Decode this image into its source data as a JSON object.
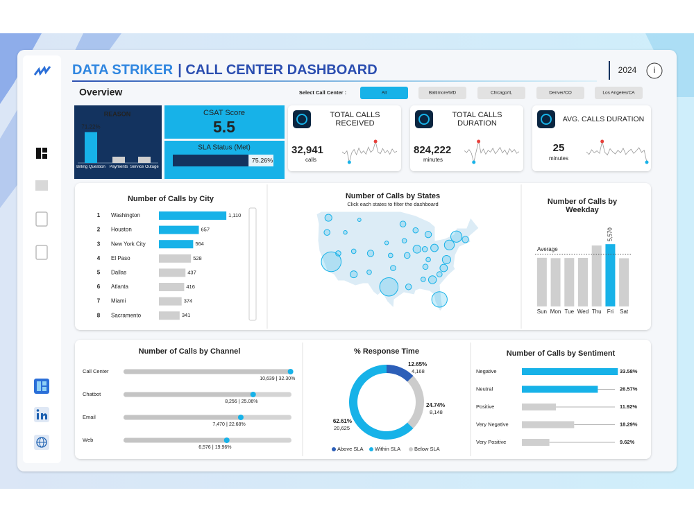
{
  "header": {
    "brand": "DATA STRIKER",
    "title": "| CALL CENTER DASHBOARD",
    "year": "2024",
    "info": "i"
  },
  "overview": "Overview",
  "filter": {
    "label": "Select Call Center :",
    "options": [
      "All",
      "Baltimore/MD",
      "Chicago/IL",
      "Denver/CO",
      "Los Angeles/CA"
    ],
    "selected": 0
  },
  "kpis": [
    {
      "title": "CSAT Score",
      "value": 5.5
    },
    {
      "title": "SLA Status (Met)",
      "value": 75.26,
      "value_label": "75.26%",
      "xlim": [
        0,
        100
      ],
      "color": "#13335f"
    },
    {
      "title": "TOTAL CALLS RECEIVED",
      "value": 32941,
      "value_label": "32,941",
      "unit": "calls",
      "trend": [
        50,
        46,
        52,
        28,
        48,
        55,
        44,
        58,
        47,
        52,
        45,
        60,
        49,
        54,
        72,
        50,
        46,
        57,
        48,
        53,
        45,
        56,
        49,
        51
      ]
    },
    {
      "title": "TOTAL CALLS DURATION",
      "value": 824222,
      "value_label": "824,222",
      "unit": "minutes",
      "trend": [
        52,
        48,
        55,
        46,
        25,
        50,
        74,
        47,
        56,
        44,
        53,
        49,
        58,
        45,
        52,
        60,
        47,
        54,
        43,
        57,
        49,
        55,
        46,
        50
      ]
    },
    {
      "title": "AVG. CALLS DURATION",
      "value": 25,
      "unit": "minutes",
      "trend": [
        50,
        45,
        54,
        48,
        52,
        47,
        70,
        49,
        44,
        56,
        50,
        46,
        53,
        48,
        57,
        45,
        51,
        55,
        47,
        52,
        58,
        49,
        53,
        30
      ]
    }
  ],
  "chart_data": [
    {
      "type": "bar",
      "title": "REASON",
      "categories": [
        "Billing Question",
        "Payments",
        "Service Outage"
      ],
      "values": [
        71.22,
        14.4,
        14.38
      ],
      "value_labels": [
        "71.22%",
        null,
        null
      ],
      "ylim": [
        0,
        80
      ],
      "colors": [
        "#17b2e8",
        "#cfcfcf",
        "#cfcfcf"
      ]
    },
    {
      "type": "barh",
      "title": "Number of Calls by City",
      "ranks": [
        1,
        2,
        3,
        4,
        5,
        6,
        7,
        8
      ],
      "categories": [
        "Washington",
        "Houston",
        "New York City",
        "El Paso",
        "Dallas",
        "Atlanta",
        "Miami",
        "Sacramento"
      ],
      "values": [
        1110,
        657,
        564,
        528,
        437,
        416,
        374,
        341
      ],
      "value_labels": [
        "1,110",
        "657",
        "564",
        "528",
        "437",
        "416",
        "374",
        "341"
      ],
      "xlim": [
        0,
        1200
      ],
      "colors": [
        "#17b2e8",
        "#17b2e8",
        "#17b2e8",
        "#cfcfcf",
        "#cfcfcf",
        "#cfcfcf",
        "#cfcfcf",
        "#cfcfcf"
      ]
    },
    {
      "type": "bubble_map",
      "title": "Number of Calls by States",
      "subtitle": "Click each states to filter the dashboard",
      "xlim": [
        -125,
        -67
      ],
      "ylim": [
        25,
        49
      ],
      "x": [
        -119.5,
        -99,
        -81,
        -75,
        -77.5,
        -120.5,
        -121,
        -117,
        -111.5,
        -111.5,
        -105.5,
        -106,
        -114.5,
        -109.5,
        -94,
        -89.5,
        -89,
        -85,
        -82.8,
        -86.2,
        -92.5,
        -86,
        -83.5,
        -79.5,
        -78.5,
        -97.5,
        -98.4,
        -92,
        -86.8,
        -81,
        -85,
        -71.8,
        -99.8,
        -93.5
      ],
      "y": [
        37,
        31,
        28,
        43,
        41,
        47.5,
        44,
        39,
        34,
        39.5,
        39,
        34.5,
        44,
        47,
        46,
        44.5,
        40,
        43.5,
        40.3,
        40,
        38.5,
        35.8,
        32.7,
        35.5,
        37.5,
        35.5,
        38.5,
        31,
        32.8,
        34,
        37.5,
        42.3,
        41.5,
        42
      ],
      "values": [
        2800,
        2400,
        1700,
        900,
        700,
        350,
        250,
        200,
        350,
        150,
        300,
        150,
        100,
        80,
        250,
        200,
        450,
        300,
        400,
        200,
        250,
        200,
        450,
        400,
        500,
        200,
        150,
        250,
        150,
        200,
        150,
        300,
        100,
        150
      ],
      "color": "#17b2e8"
    },
    {
      "type": "bar",
      "title": "Number of Calls by Weekday",
      "categories": [
        "Sun",
        "Mon",
        "Tue",
        "Wed",
        "Thu",
        "Fri",
        "Sat"
      ],
      "values": [
        4350,
        4320,
        4330,
        4340,
        5450,
        5570,
        4310
      ],
      "value_labels": [
        null,
        null,
        null,
        null,
        null,
        "5,570",
        null
      ],
      "ylim": [
        0,
        6200
      ],
      "annotation": "Average",
      "colors": [
        "#cfcfcf",
        "#cfcfcf",
        "#cfcfcf",
        "#cfcfcf",
        "#cfcfcf",
        "#17b2e8",
        "#cfcfcf"
      ]
    },
    {
      "type": "lollipop",
      "title": "Number of Calls by Channel",
      "categories": [
        "Call Center",
        "Chatbot",
        "Email",
        "Web"
      ],
      "values": [
        10639,
        8256,
        7470,
        6576
      ],
      "value_labels": [
        "10,639",
        "8,256",
        "7,470",
        "6,576"
      ],
      "shares": [
        32.3,
        25.06,
        22.68,
        19.96
      ],
      "share_labels": [
        "32.30%",
        "25.06%",
        "22.68%",
        "19.96%"
      ],
      "xlim": [
        0,
        10700
      ],
      "color": "#17b2e8"
    },
    {
      "type": "donut",
      "title": "% Response Time",
      "categories": [
        "Above SLA",
        "Within SLA",
        "Below SLA"
      ],
      "values": [
        12.65,
        62.61,
        24.74
      ],
      "value_labels": [
        "12.65%",
        "62.61%",
        "24.74%"
      ],
      "counts": [
        4168,
        20625,
        8148
      ],
      "count_labels": [
        "4,168",
        "20,625",
        "8,148"
      ],
      "colors": [
        "#2d5fb8",
        "#17b2e8",
        "#cccccc"
      ]
    },
    {
      "type": "barh",
      "title": "Number of Calls by Sentiment",
      "categories": [
        "Negative",
        "Neutral",
        "Positive",
        "Very Negative",
        "Very Positive"
      ],
      "values": [
        33.58,
        26.57,
        11.92,
        18.29,
        9.62
      ],
      "value_labels": [
        "33.58%",
        "26.57%",
        "11.92%",
        "18.29%",
        "9.62%"
      ],
      "xlim": [
        0,
        34
      ],
      "colors": [
        "#17b2e8",
        "#17b2e8",
        "#cfcfcf",
        "#cfcfcf",
        "#cfcfcf"
      ]
    }
  ]
}
